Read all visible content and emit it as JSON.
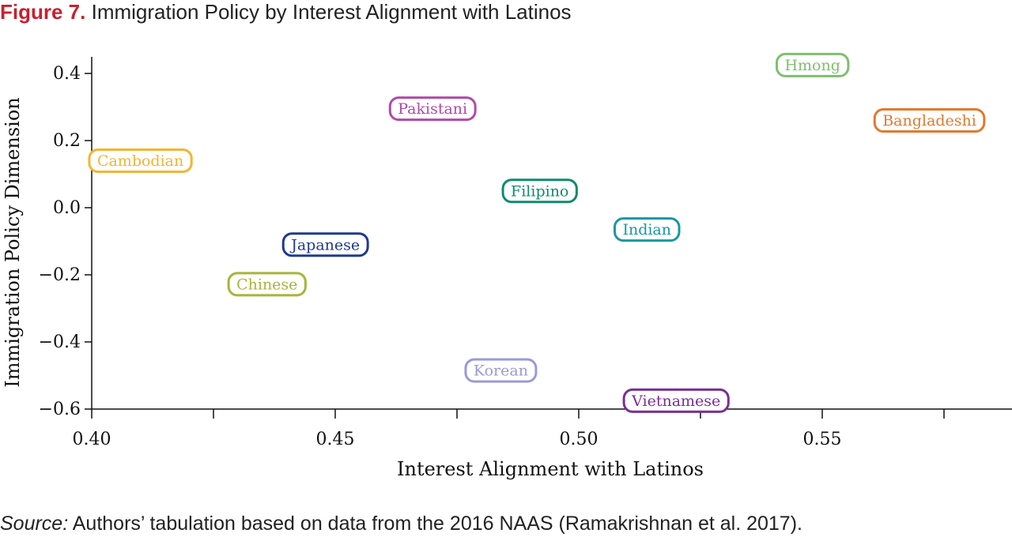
{
  "figure": {
    "number": "Figure 7.",
    "title": "Immigration Policy by Interest Alignment with Latinos"
  },
  "source": {
    "label": "Source:",
    "text": "Authors’ tabulation based on data from the 2016 NAAS (Ramakrishnan et al. 2017)."
  },
  "chart_data": {
    "type": "scatter",
    "title": "Immigration Policy by Interest Alignment with Latinos",
    "xlabel": "Interest Alignment  with Latinos",
    "ylabel": "Immigration Policy Dimension",
    "xlim": [
      0.4,
      0.59
    ],
    "ylim": [
      -0.6,
      0.45
    ],
    "x_ticks": [
      0.4,
      0.425,
      0.45,
      0.475,
      0.5,
      0.525,
      0.55,
      0.575
    ],
    "x_tick_labels": [
      {
        "value": 0.4,
        "label": "0.40"
      },
      {
        "value": 0.45,
        "label": "0.45"
      },
      {
        "value": 0.5,
        "label": "0.50"
      },
      {
        "value": 0.55,
        "label": "0.55"
      }
    ],
    "y_ticks": [
      {
        "value": 0.4,
        "label": "0.4"
      },
      {
        "value": 0.2,
        "label": "0.2"
      },
      {
        "value": 0.0,
        "label": "0.0"
      },
      {
        "value": -0.2,
        "label": "−0.2"
      },
      {
        "value": -0.4,
        "label": "−0.4"
      },
      {
        "value": -0.6,
        "label": "−0.6"
      }
    ],
    "grid": false,
    "points": [
      {
        "label": "Hmong",
        "x": 0.548,
        "y": 0.425,
        "color": "#7fbf6f"
      },
      {
        "label": "Bangladeshi",
        "x": 0.572,
        "y": 0.26,
        "color": "#e07a2d"
      },
      {
        "label": "Pakistani",
        "x": 0.47,
        "y": 0.295,
        "color": "#b04aa8"
      },
      {
        "label": "Cambodian",
        "x": 0.41,
        "y": 0.14,
        "color": "#f2b533"
      },
      {
        "label": "Filipino",
        "x": 0.492,
        "y": 0.05,
        "color": "#0f8a6e"
      },
      {
        "label": "Indian",
        "x": 0.514,
        "y": -0.065,
        "color": "#1a97a3"
      },
      {
        "label": "Japanese",
        "x": 0.448,
        "y": -0.11,
        "color": "#1f3a8f"
      },
      {
        "label": "Chinese",
        "x": 0.436,
        "y": -0.228,
        "color": "#a8b43a"
      },
      {
        "label": "Korean",
        "x": 0.484,
        "y": -0.485,
        "color": "#9a9ad6"
      },
      {
        "label": "Vietnamese",
        "x": 0.52,
        "y": -0.575,
        "color": "#7a2f95"
      }
    ]
  }
}
